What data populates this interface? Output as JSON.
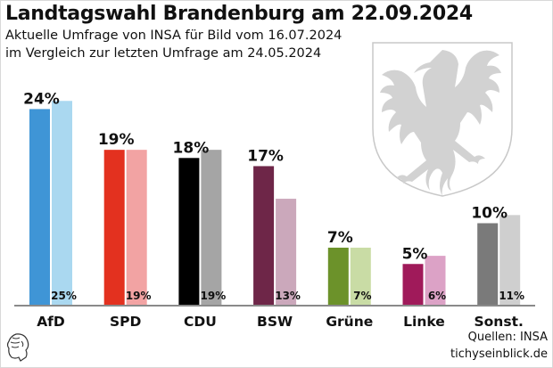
{
  "title": "Landtagswahl Brandenburg am 22.09.2024",
  "subtitle_1": "Aktuelle Umfrage von INSA für Bild vom 16.07.2024",
  "subtitle_2": "im Vergleich zur letzten Umfrage am 24.05.2024",
  "source_1": "Quellen: INSA",
  "source_2": "tichyseinblick.de",
  "chart_data": {
    "type": "bar",
    "title": "Landtagswahl Brandenburg am 22.09.2024",
    "xlabel": "",
    "ylabel": "",
    "ylim": [
      0,
      26
    ],
    "grid": false,
    "categories": [
      "AfD",
      "SPD",
      "CDU",
      "BSW",
      "Grüne",
      "Linke",
      "Sonst."
    ],
    "series": [
      {
        "name": "INSA 16.07.2024",
        "values": [
          24,
          19,
          18,
          17,
          7,
          5,
          10
        ],
        "colors": [
          "#3f95d6",
          "#e3311f",
          "#000000",
          "#6e2648",
          "#6c922a",
          "#a01a5a",
          "#7a7a7a"
        ]
      },
      {
        "name": "INSA 24.05.2024",
        "values": [
          25,
          19,
          19,
          13,
          7,
          6,
          11
        ],
        "colors": [
          "#aad8f0",
          "#f2a3a3",
          "#a5a5a5",
          "#cba8bb",
          "#c9dca5",
          "#dca2c6",
          "#cfcfcf"
        ]
      }
    ],
    "labels_current": [
      "24%",
      "19%",
      "18%",
      "17%",
      "7%",
      "5%",
      "10%"
    ],
    "labels_previous": [
      "25%",
      "19%",
      "19%",
      "13%",
      "7%",
      "6%",
      "11%"
    ]
  }
}
